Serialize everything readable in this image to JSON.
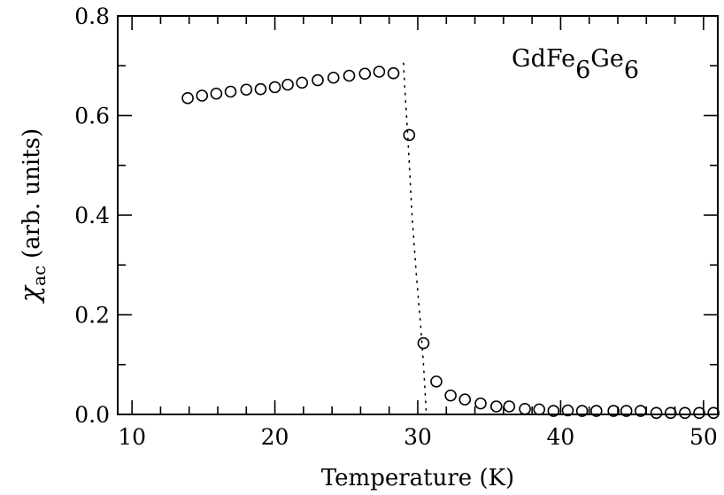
{
  "chart_data": {
    "type": "scatter",
    "xlabel": "Temperature (K)",
    "ylabel_symbol": "χ",
    "ylabel_subscript": "ac",
    "ylabel_units": "(arb. units)",
    "xlim": [
      9,
      51
    ],
    "ylim": [
      0,
      0.8
    ],
    "xticks": [
      10,
      20,
      30,
      40,
      50
    ],
    "xtick_labels": [
      "10",
      "20",
      "30",
      "40",
      "50"
    ],
    "yticks": [
      0,
      0.2,
      0.4,
      0.6,
      0.8
    ],
    "ytick_labels": [
      "0.0",
      "0.2",
      "0.4",
      "0.6",
      "0.8"
    ],
    "grid": false,
    "legend": "none",
    "annotation": {
      "parts": [
        {
          "text": "GdFe",
          "sub": false
        },
        {
          "text": "6",
          "sub": true
        },
        {
          "text": "Ge",
          "sub": false
        },
        {
          "text": "6",
          "sub": true
        }
      ]
    },
    "series": [
      {
        "marker": "open-circle",
        "x": [
          13.9,
          14.9,
          15.9,
          16.9,
          18.0,
          19.0,
          20.0,
          20.9,
          21.9,
          23.0,
          24.1,
          25.2,
          26.3,
          27.3,
          28.3,
          29.4,
          30.4,
          31.3,
          32.3,
          33.3,
          34.4,
          35.5,
          36.4,
          37.5,
          38.5,
          39.5,
          40.5,
          41.5,
          42.5,
          43.7,
          44.6,
          45.6,
          46.7,
          47.7,
          48.7,
          49.7,
          50.7
        ],
        "y": [
          0.635,
          0.64,
          0.644,
          0.648,
          0.652,
          0.653,
          0.657,
          0.662,
          0.666,
          0.671,
          0.676,
          0.68,
          0.684,
          0.688,
          0.685,
          0.561,
          0.143,
          0.066,
          0.038,
          0.03,
          0.022,
          0.016,
          0.016,
          0.011,
          0.01,
          0.007,
          0.008,
          0.007,
          0.007,
          0.007,
          0.007,
          0.007,
          0.003,
          0.003,
          0.003,
          0.003,
          0.003
        ]
      },
      {
        "style": "dotted-line",
        "x": [
          29.0,
          29.1,
          29.3,
          29.6,
          29.9,
          30.2,
          30.4,
          30.6
        ],
        "y": [
          0.705,
          0.65,
          0.56,
          0.4,
          0.28,
          0.18,
          0.1,
          0.0
        ]
      }
    ]
  }
}
